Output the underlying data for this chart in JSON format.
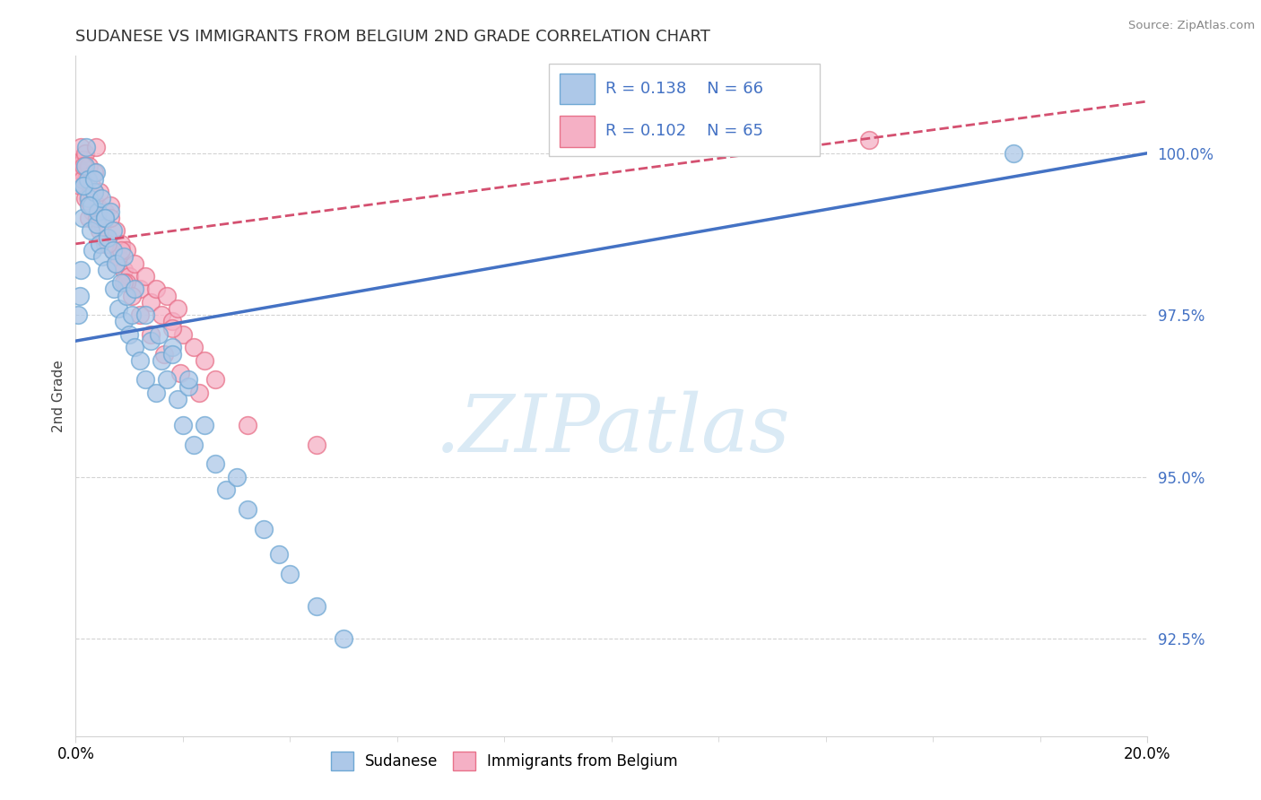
{
  "title": "SUDANESE VS IMMIGRANTS FROM BELGIUM 2ND GRADE CORRELATION CHART",
  "source": "Source: ZipAtlas.com",
  "ylabel": "2nd Grade",
  "ytick_values": [
    92.5,
    95.0,
    97.5,
    100.0
  ],
  "xlim": [
    0.0,
    20.0
  ],
  "ylim": [
    91.0,
    101.5
  ],
  "legend_r1": "R = 0.138",
  "legend_n1": "N = 66",
  "legend_r2": "R = 0.102",
  "legend_n2": "N = 65",
  "blue_color": "#adc8e8",
  "blue_edge": "#6fa8d4",
  "pink_color": "#f5b0c5",
  "pink_edge": "#e8728a",
  "line_blue": "#4472c4",
  "line_pink": "#d45070",
  "watermark_color": "#daeaf5",
  "background": "#ffffff",
  "sudanese_x": [
    0.05,
    0.08,
    0.1,
    0.12,
    0.15,
    0.18,
    0.2,
    0.22,
    0.25,
    0.28,
    0.3,
    0.32,
    0.35,
    0.38,
    0.4,
    0.42,
    0.45,
    0.48,
    0.5,
    0.55,
    0.58,
    0.6,
    0.65,
    0.7,
    0.72,
    0.75,
    0.8,
    0.85,
    0.9,
    0.95,
    1.0,
    1.05,
    1.1,
    1.2,
    1.3,
    1.4,
    1.5,
    1.6,
    1.7,
    1.8,
    1.9,
    2.0,
    2.1,
    2.2,
    2.4,
    2.6,
    2.8,
    3.0,
    3.2,
    3.5,
    3.8,
    4.0,
    4.5,
    5.0,
    0.15,
    0.25,
    0.35,
    0.55,
    0.7,
    0.9,
    1.1,
    1.3,
    1.55,
    1.8,
    2.1,
    17.5
  ],
  "sudanese_y": [
    97.5,
    97.8,
    98.2,
    99.0,
    99.5,
    99.8,
    100.1,
    99.6,
    99.3,
    98.8,
    99.2,
    98.5,
    99.4,
    99.7,
    98.9,
    99.1,
    98.6,
    99.3,
    98.4,
    99.0,
    98.2,
    98.7,
    99.1,
    98.5,
    97.9,
    98.3,
    97.6,
    98.0,
    97.4,
    97.8,
    97.2,
    97.5,
    97.0,
    96.8,
    96.5,
    97.1,
    96.3,
    96.8,
    96.5,
    97.0,
    96.2,
    95.8,
    96.4,
    95.5,
    95.8,
    95.2,
    94.8,
    95.0,
    94.5,
    94.2,
    93.8,
    93.5,
    93.0,
    92.5,
    99.5,
    99.2,
    99.6,
    99.0,
    98.8,
    98.4,
    97.9,
    97.5,
    97.2,
    96.9,
    96.5,
    100.0
  ],
  "belgium_x": [
    0.05,
    0.08,
    0.1,
    0.12,
    0.15,
    0.18,
    0.2,
    0.22,
    0.25,
    0.28,
    0.3,
    0.32,
    0.35,
    0.38,
    0.4,
    0.45,
    0.5,
    0.55,
    0.6,
    0.65,
    0.7,
    0.75,
    0.8,
    0.85,
    0.9,
    0.95,
    1.0,
    1.1,
    1.2,
    1.3,
    1.4,
    1.5,
    1.6,
    1.7,
    1.8,
    1.9,
    2.0,
    2.2,
    2.4,
    2.6,
    0.12,
    0.18,
    0.25,
    0.35,
    0.45,
    0.55,
    0.65,
    0.75,
    0.85,
    0.95,
    1.05,
    1.2,
    1.4,
    1.65,
    1.95,
    2.3,
    0.15,
    0.4,
    3.2,
    4.5,
    1.8,
    0.28,
    0.6,
    0.9,
    14.8
  ],
  "belgium_y": [
    99.8,
    99.5,
    100.1,
    99.7,
    99.9,
    100.0,
    99.6,
    99.3,
    99.8,
    99.4,
    99.5,
    99.1,
    99.7,
    100.1,
    99.2,
    99.4,
    98.9,
    99.1,
    98.7,
    99.2,
    98.5,
    98.8,
    98.4,
    98.6,
    98.2,
    98.5,
    98.1,
    98.3,
    97.9,
    98.1,
    97.7,
    97.9,
    97.5,
    97.8,
    97.4,
    97.6,
    97.2,
    97.0,
    96.8,
    96.5,
    99.6,
    99.3,
    99.0,
    99.4,
    98.8,
    98.6,
    99.0,
    98.3,
    98.5,
    98.0,
    97.8,
    97.5,
    97.2,
    96.9,
    96.6,
    96.3,
    99.8,
    99.0,
    95.8,
    95.5,
    97.3,
    99.2,
    98.6,
    98.0,
    100.2
  ],
  "blue_line_x": [
    0.0,
    20.0
  ],
  "blue_line_y": [
    97.1,
    100.0
  ],
  "pink_line_x": [
    0.0,
    20.0
  ],
  "pink_line_y": [
    98.6,
    100.8
  ]
}
